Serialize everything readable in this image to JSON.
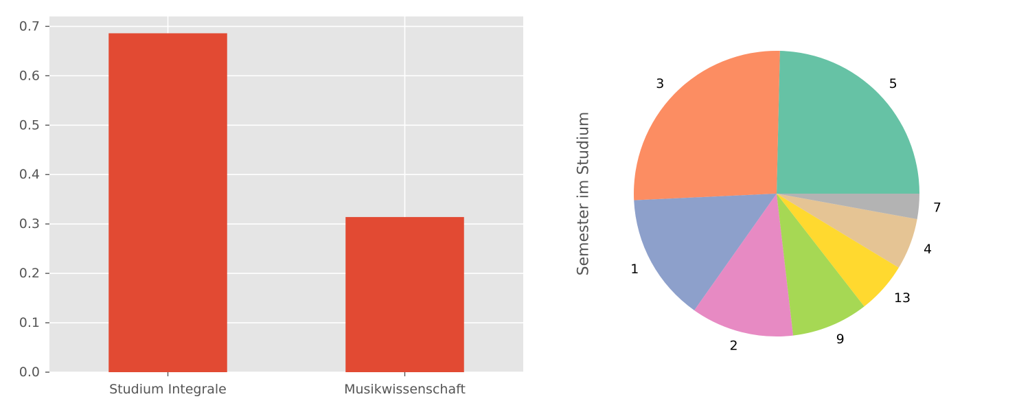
{
  "chart_data": [
    {
      "type": "bar",
      "categories": [
        "Studium Integrale",
        "Musikwissenschaft"
      ],
      "values": [
        0.686,
        0.314
      ],
      "ylim": [
        0,
        0.72
      ],
      "yticks": [
        0.0,
        0.1,
        0.2,
        0.3,
        0.4,
        0.5,
        0.6,
        0.7
      ],
      "ytick_labels": [
        "0.0",
        "0.1",
        "0.2",
        "0.3",
        "0.4",
        "0.5",
        "0.6",
        "0.7"
      ],
      "title": "",
      "xlabel": "",
      "ylabel": "",
      "grid": true,
      "background_color": "#e5e5e5",
      "bar_color": "#e24a33"
    },
    {
      "type": "pie",
      "ylabel": "Semester im Studium",
      "labels": [
        "5",
        "3",
        "1",
        "2",
        "9",
        "13",
        "4",
        "7"
      ],
      "values": [
        25.0,
        26.5,
        14.7,
        11.8,
        8.8,
        5.9,
        5.9,
        2.9
      ],
      "start_angle": 0,
      "direction": "counterclockwise",
      "colors": [
        "#66c2a5",
        "#fc8d62",
        "#8da0cb",
        "#e78ac3",
        "#a6d854",
        "#ffd92f",
        "#e5c494",
        "#b3b3b3"
      ]
    }
  ]
}
